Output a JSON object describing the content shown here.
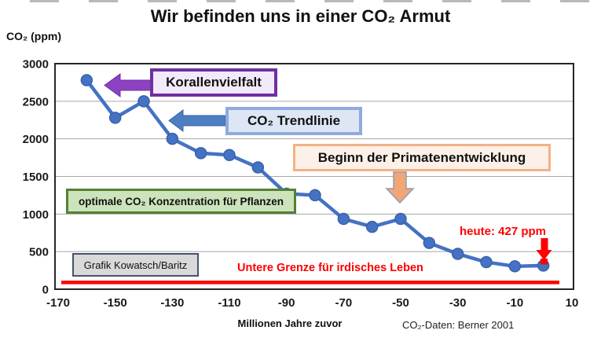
{
  "title": "Wir befinden uns in einer CO₂ Armut",
  "chart_data": {
    "type": "line",
    "title": "Wir befinden uns in einer CO₂ Armut",
    "y_axis_title": "CO₂ (ppm)",
    "x_axis_title": "Millionen Jahre zuvor",
    "source": "CO₂-Daten: Berner 2001",
    "series_name": "CO₂ Trendlinie",
    "x": [
      -160,
      -150,
      -140,
      -130,
      -120,
      -110,
      -100,
      -90,
      -80,
      -70,
      -60,
      -50,
      -40,
      -30,
      -20,
      -10,
      0
    ],
    "values": [
      2780,
      2280,
      2500,
      2000,
      1810,
      1785,
      1620,
      1270,
      1250,
      935,
      830,
      935,
      615,
      470,
      360,
      305,
      315
    ],
    "xlim": [
      -170,
      10
    ],
    "ylim": [
      0,
      3000
    ],
    "xticks": [
      -170,
      -150,
      -130,
      -110,
      -90,
      -70,
      -50,
      -30,
      -10,
      10
    ],
    "ytick_step": 500,
    "grid": "horizontal",
    "legend_position": "none",
    "threshold_line": {
      "label": "Untere Grenze für irdisches Leben",
      "value": 100
    },
    "today_marker": {
      "label": "heute: 427 ppm",
      "value": 427,
      "x": 0
    }
  },
  "annotations": {
    "korallenvielfalt": "Korallenvielfalt",
    "trendlinie": "CO₂ Trendlinie",
    "primaten": "Beginn der Primatenentwicklung",
    "pflanzen": "optimale CO₂ Konzentration für Pflanzen",
    "grafik_credit": "Grafik Kowatsch/Baritz",
    "untere_grenze": "Untere Grenze für irdisches Leben",
    "heute": "heute: 427 ppm"
  },
  "colors": {
    "trend_line": "#4472c4",
    "point_border": "#3a62a8",
    "threshold_red": "#fe0000",
    "purple_arrow": "#8c42c2",
    "blue_arrow": "#4d7ec0",
    "orange_arrow": "#f2a673",
    "gridline": "#a6a6a6",
    "plot_border": "#262626"
  }
}
